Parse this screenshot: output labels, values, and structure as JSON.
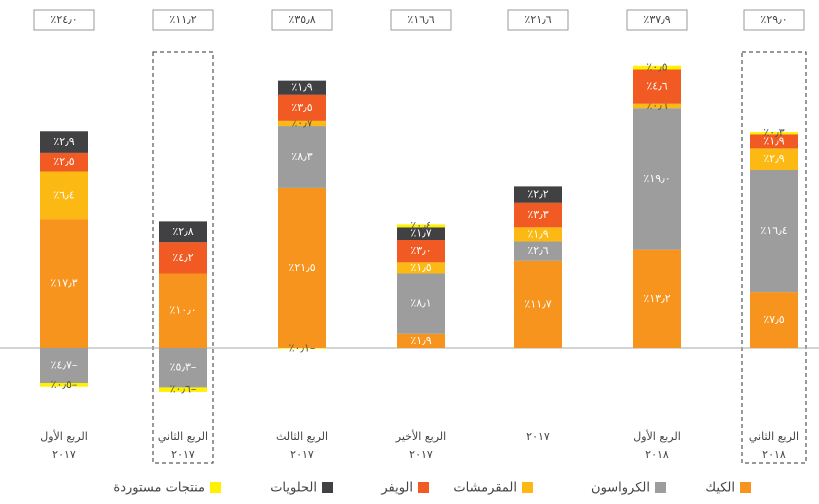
{
  "chart_data": {
    "type": "stacked_bar",
    "categories": [
      [
        "الربع الأول",
        "٢٠١٧"
      ],
      [
        "الربع الثاني",
        "٢٠١٧"
      ],
      [
        "الربع الثالث",
        "٢٠١٧"
      ],
      [
        "الربع الأخير",
        "٢٠١٧"
      ],
      [
        "٢٠١٧"
      ],
      [
        "الربع الأول",
        "٢٠١٨"
      ],
      [
        "الربع الثاني",
        "٢٠١٨"
      ]
    ],
    "series": [
      {
        "name": "الكيك",
        "color": "#f7941d",
        "values": [
          17.3,
          10.0,
          21.5,
          1.9,
          11.7,
          13.2,
          7.5
        ],
        "value_labels": [
          "٪١٧٫٣",
          "٪١٠٫٠",
          "٪٢١٫٥",
          "٪١٫٩",
          "٪١١٫٧",
          "٪١٣٫٢",
          "٪٧٫٥"
        ]
      },
      {
        "name": "الكرواسون",
        "color": "#9d9d9d",
        "values": [
          -4.7,
          -5.3,
          8.3,
          8.1,
          2.6,
          19.0,
          16.4
        ],
        "value_labels": [
          "٪٤٫٧–",
          "٪٥٫٣–",
          "٪٨٫٣",
          "٪٨٫١",
          "٪٢٫٦",
          "٪١٩٫٠",
          "٪١٦٫٤"
        ]
      },
      {
        "name": "المقرمشات",
        "color": "#fdb913",
        "values": [
          6.4,
          null,
          0.7,
          1.5,
          1.9,
          0.6,
          2.9
        ],
        "value_labels": [
          "٪٦٫٤",
          null,
          "٪٠٫٧",
          "٪١٫٥",
          "٪١٫٩",
          "٪٠٫٦",
          "٪٢٫٩"
        ]
      },
      {
        "name": "الويفر",
        "color": "#f15a22",
        "values": [
          2.5,
          4.2,
          3.5,
          3.0,
          3.3,
          4.6,
          1.9
        ],
        "value_labels": [
          "٪٢٫٥",
          "٪٤٫٢",
          "٪٣٫٥",
          "٪٣٫٠",
          "٪٣٫٣",
          "٪٤٫٦",
          "٪١٫٩"
        ]
      },
      {
        "name": "الحلويات",
        "color": "#414042",
        "values": [
          2.9,
          2.8,
          1.9,
          1.7,
          2.2,
          null,
          null
        ],
        "value_labels": [
          "٪٢٫٩",
          "٪٢٫٨",
          "٪١٫٩",
          "٪١٫٧",
          "٪٢٫٢",
          null,
          null
        ]
      },
      {
        "name": "منتجات مستوردة",
        "color": "#fff200",
        "values": [
          -0.5,
          -0.6,
          -0.1,
          0.4,
          null,
          0.5,
          0.3
        ],
        "value_labels": [
          "٪٠٫٥–",
          "٪٠٫٦–",
          "٪٠٫١–",
          "٪٠٫٤",
          null,
          "٪٠٫٥",
          "٪٠٫٣"
        ]
      }
    ],
    "totals": {
      "values": [
        24.0,
        11.2,
        35.8,
        16.6,
        21.6,
        37.9,
        29.0
      ],
      "value_labels": [
        "٪٢٤٫٠",
        "٪١١٫٢",
        "٪٣٥٫٨",
        "٪١٦٫٦",
        "٪٢١٫٦",
        "٪٣٧٫٩",
        "٪٢٩٫٠"
      ]
    },
    "ylim": [
      -9,
      38
    ]
  }
}
